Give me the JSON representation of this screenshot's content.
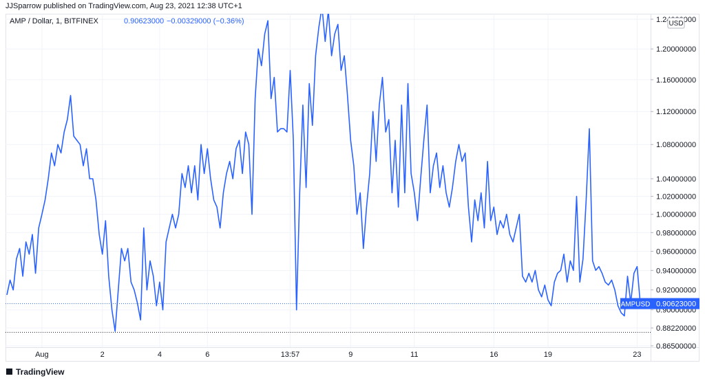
{
  "header": {
    "title": "JJSparrow published on TradingView.com, Aug 23, 2021 12:38 UTC+1"
  },
  "footer": {
    "brand": "TradingView"
  },
  "chart_data": {
    "type": "line",
    "legend": {
      "symbol": "AMP / Dollar, 1, BITFINEX",
      "last_label": "0.90623000",
      "change_label": "−0.00329000 (−0.36%)"
    },
    "currency": "USD",
    "log": true,
    "grid": true,
    "categories": [
      null,
      null,
      null,
      null,
      null,
      null,
      null,
      null,
      null,
      null,
      null,
      "Aug",
      null,
      null,
      null,
      null,
      null,
      null,
      null,
      null,
      null,
      null,
      null,
      null,
      null,
      null,
      null,
      null,
      null,
      null,
      "2",
      null,
      null,
      null,
      null,
      null,
      null,
      null,
      null,
      null,
      null,
      null,
      null,
      null,
      null,
      null,
      null,
      null,
      "4",
      null,
      null,
      null,
      null,
      null,
      null,
      null,
      null,
      null,
      null,
      null,
      null,
      null,
      null,
      "6",
      null,
      null,
      null,
      null,
      null,
      null,
      null,
      null,
      null,
      null,
      null,
      null,
      null,
      null,
      null,
      null,
      null,
      null,
      null,
      null,
      null,
      null,
      null,
      null,
      null,
      "13:57",
      null,
      null,
      null,
      null,
      null,
      null,
      null,
      null,
      null,
      null,
      null,
      null,
      null,
      null,
      null,
      null,
      null,
      null,
      "9",
      null,
      null,
      null,
      null,
      null,
      null,
      null,
      null,
      null,
      null,
      null,
      null,
      null,
      null,
      null,
      null,
      null,
      null,
      null,
      "11",
      null,
      null,
      null,
      null,
      null,
      null,
      null,
      null,
      null,
      null,
      null,
      null,
      null,
      null,
      null,
      null,
      null,
      null,
      null,
      null,
      null,
      null,
      null,
      null,
      "16",
      null,
      null,
      null,
      null,
      null,
      null,
      null,
      null,
      null,
      null,
      null,
      null,
      null,
      null,
      null,
      null,
      "19",
      null,
      null,
      null,
      null,
      null,
      null,
      null,
      null,
      null,
      null,
      null,
      null,
      null,
      null,
      null,
      null,
      null,
      null,
      null,
      null,
      null,
      null,
      null,
      null,
      null,
      null,
      null,
      "23",
      null
    ],
    "series": [
      {
        "name": "AMPUSD",
        "color": "#2962ff",
        "values": [
          0.915,
          0.93,
          0.92,
          0.952,
          0.963,
          0.934,
          0.97,
          0.957,
          0.978,
          0.937,
          0.985,
          1.0,
          1.016,
          1.04,
          1.07,
          1.055,
          1.08,
          1.07,
          1.095,
          1.11,
          1.14,
          1.09,
          1.085,
          1.08,
          1.055,
          1.075,
          1.04,
          1.04,
          1.016,
          0.978,
          0.957,
          0.993,
          0.934,
          0.9,
          0.879,
          0.92,
          0.963,
          0.95,
          0.963,
          0.928,
          0.92,
          0.907,
          0.89,
          0.985,
          0.92,
          0.95,
          0.934,
          0.904,
          0.928,
          0.9,
          0.97,
          0.985,
          1.0,
          0.985,
          1.0,
          1.046,
          1.03,
          1.055,
          1.024,
          1.055,
          1.016,
          1.08,
          1.046,
          1.075,
          1.04,
          1.016,
          1.008,
          0.985,
          1.024,
          1.046,
          1.06,
          1.04,
          1.075,
          1.085,
          1.046,
          1.095,
          1.08,
          1.0,
          1.136,
          1.2,
          1.178,
          1.22,
          1.238,
          1.136,
          1.163,
          1.095,
          1.099,
          1.099,
          1.095,
          1.172,
          1.085,
          0.9,
          1.024,
          1.128,
          1.03,
          1.155,
          1.103,
          1.191,
          1.229,
          1.257,
          1.21,
          1.252,
          1.191,
          1.22,
          1.233,
          1.172,
          1.191,
          1.14,
          1.085,
          1.055,
          1.0,
          1.024,
          0.963,
          1.008,
          1.046,
          1.12,
          1.06,
          1.128,
          1.163,
          1.095,
          1.11,
          1.024,
          1.085,
          1.008,
          1.128,
          1.024,
          1.155,
          1.046,
          1.024,
          0.993,
          1.04,
          1.085,
          1.128,
          1.024,
          1.055,
          1.07,
          1.03,
          1.055,
          1.024,
          1.008,
          1.03,
          1.06,
          1.08,
          1.06,
          1.07,
          1.008,
          0.97,
          1.016,
          0.993,
          1.024,
          0.985,
          1.06,
          0.993,
          1.008,
          0.978,
          0.993,
          0.985,
          1.0,
          0.978,
          0.97,
          0.985,
          1.0,
          0.934,
          0.928,
          0.937,
          0.928,
          0.94,
          0.92,
          0.913,
          0.925,
          0.91,
          0.904,
          0.928,
          0.937,
          0.94,
          0.957,
          0.928,
          0.95,
          0.94,
          1.02,
          0.928,
          0.952,
          1.016,
          1.099,
          0.95,
          0.94,
          0.944,
          0.937,
          0.928,
          0.925,
          0.93,
          0.92,
          0.904,
          0.897,
          0.894,
          0.934,
          0.907,
          0.937,
          0.944,
          0.90623
        ]
      }
    ],
    "price_line": 0.90623,
    "low_line": 0.878,
    "ylim": [
      0.8637,
      1.2475
    ],
    "yticks": [
      {
        "value": 0.865,
        "label": "0.86500000"
      },
      {
        "value": 0.8822,
        "label": "0.88220000"
      },
      {
        "value": 0.9,
        "label": "0.90000000"
      },
      {
        "value": 0.92,
        "label": "0.92000000"
      },
      {
        "value": 0.94,
        "label": "0.94000000"
      },
      {
        "value": 0.96,
        "label": "0.96000000"
      },
      {
        "value": 0.98,
        "label": "0.98000000"
      },
      {
        "value": 1.0,
        "label": "1.00000000"
      },
      {
        "value": 1.02,
        "label": "1.02000000"
      },
      {
        "value": 1.04,
        "label": "1.04000000"
      },
      {
        "value": 1.08,
        "label": "1.08000000"
      },
      {
        "value": 1.12,
        "label": "1.12000000"
      },
      {
        "value": 1.16,
        "label": "1.16000000"
      },
      {
        "value": 1.2,
        "label": "1.20000000"
      },
      {
        "value": 1.24,
        "label": "1.24000000"
      }
    ]
  }
}
